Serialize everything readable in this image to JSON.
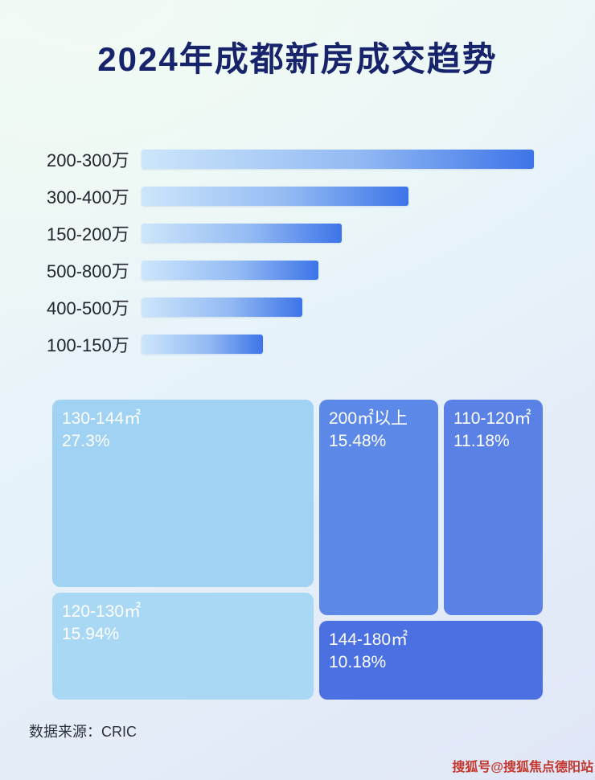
{
  "page": {
    "title": "2024年成都新房成交趋势",
    "source_label": "数据来源：CRIC",
    "watermark": "搜狐号@搜狐焦点德阳站"
  },
  "colors": {
    "title_text": "#17246b",
    "bar_gradient_start": "#cde6fb",
    "bar_gradient_end": "#3d74e8",
    "treemap_light_1": "#a0d2f4",
    "treemap_light_2": "#a9d8f5",
    "treemap_medium_1": "#5c88e8",
    "treemap_medium_2": "#5a82e6",
    "treemap_dark": "#4a70e2",
    "watermark_text": "#c4382d"
  },
  "chart_data": [
    {
      "type": "bar",
      "orientation": "horizontal",
      "title": "2024年成都新房成交趋势",
      "categories": [
        "200-300万",
        "300-400万",
        "150-200万",
        "500-800万",
        "400-500万",
        "100-150万"
      ],
      "values": [
        100,
        68,
        51,
        45,
        41,
        31
      ],
      "value_note": "relative bar lengths as % of longest bar; no numeric axis or data labels shown",
      "xlabel": "",
      "ylabel": "",
      "grid": false,
      "legend": false
    },
    {
      "type": "treemap",
      "items": [
        {
          "label": "130-144㎡",
          "value_pct": 27.3,
          "value_text": "27.3%"
        },
        {
          "label": "120-130㎡",
          "value_pct": 15.94,
          "value_text": "15.94%"
        },
        {
          "label": "200㎡以上",
          "value_pct": 15.48,
          "value_text": "15.48%"
        },
        {
          "label": "110-120㎡",
          "value_pct": 11.18,
          "value_text": "11.18%"
        },
        {
          "label": "144-180㎡",
          "value_pct": 10.18,
          "value_text": "10.18%"
        }
      ]
    }
  ]
}
